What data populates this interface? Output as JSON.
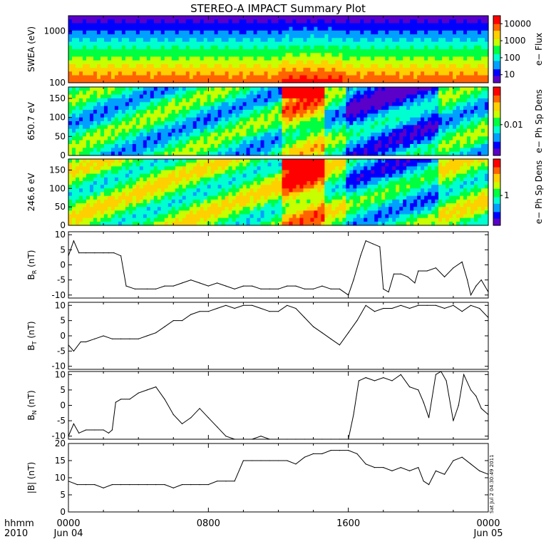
{
  "title": "STEREO-A IMPACT Summary Plot",
  "footer": {
    "time_label": "hhmm",
    "year": "2010",
    "ticks": [
      {
        "hhmm": "0000",
        "date": "Jun 04"
      },
      {
        "hhmm": "0800",
        "date": ""
      },
      {
        "hhmm": "1600",
        "date": ""
      },
      {
        "hhmm": "0000",
        "date": "Jun 05"
      }
    ],
    "stamp": "Sat Jul 2 04:30:49 2011"
  },
  "colors": {
    "colormap": [
      "#5a00c8",
      "#0000ff",
      "#00a0ff",
      "#00ffd0",
      "#00ff40",
      "#c8ff00",
      "#ffd000",
      "#ff6400",
      "#ff0000"
    ],
    "line": "#000000"
  },
  "chart_data": [
    {
      "type": "heatmap",
      "id": "swea",
      "ylabel": "SWEA (eV)",
      "yticks": [
        "100",
        "1000"
      ],
      "ylim": [
        100,
        2000
      ],
      "yscale": "log",
      "colorbar": {
        "label": "e− Flux",
        "ticks": [
          "10",
          "100",
          "1000",
          "10000"
        ],
        "scale": "log"
      },
      "description_of_values": "energy spectrogram, highest flux at low energies, enhanced near 12-15 hr"
    },
    {
      "type": "heatmap",
      "id": "pad650",
      "ylabel": "650.7 eV",
      "yticks": [
        "0",
        "50",
        "100",
        "150"
      ],
      "ylim": [
        0,
        180
      ],
      "colorbar": {
        "label": "e− Ph Sp Dens",
        "ticks": [
          "0.01"
        ],
        "scale": "log"
      }
    },
    {
      "type": "heatmap",
      "id": "pad246",
      "ylabel": "246.6 eV",
      "yticks": [
        "0",
        "50",
        "100",
        "150"
      ],
      "ylim": [
        0,
        180
      ],
      "colorbar": {
        "label": "e− Ph Sp Dens",
        "ticks": [
          "1"
        ],
        "scale": "log"
      }
    },
    {
      "type": "line",
      "id": "br",
      "ylabel": "B",
      "ylabel_sub": "R",
      "ylabel_unit": "(nT)",
      "yticks": [
        "-10",
        "-5",
        "0",
        "5",
        "10"
      ],
      "ylim": [
        -11,
        11
      ],
      "x": [
        0,
        0.3,
        0.6,
        1,
        1.5,
        2,
        2.3,
        2.6,
        3,
        3.3,
        3.8,
        4.5,
        5,
        5.5,
        6,
        6.5,
        7,
        7.5,
        8,
        8.5,
        9,
        9.5,
        10,
        10.5,
        11,
        11.5,
        12,
        12.5,
        13,
        13.5,
        14,
        14.5,
        15,
        15.5,
        16,
        16.3,
        16.7,
        17,
        17.4,
        17.8,
        18,
        18.3,
        18.6,
        19,
        19.4,
        19.8,
        20,
        20.5,
        21,
        21.5,
        22,
        22.5,
        22.8,
        23,
        23.3,
        23.6,
        24
      ],
      "y": [
        3,
        8,
        4,
        4,
        4,
        4,
        4,
        4,
        3,
        -7,
        -8,
        -8,
        -8,
        -7,
        -7,
        -6,
        -5,
        -6,
        -7,
        -6,
        -7,
        -8,
        -7,
        -7,
        -8,
        -8,
        -8,
        -7,
        -7,
        -8,
        -8,
        -7,
        -8,
        -8,
        -10,
        -5,
        3,
        8,
        7,
        6,
        -8,
        -9,
        -3,
        -3,
        -4,
        -6,
        -2,
        -2,
        -1,
        -4,
        -1,
        1,
        -5,
        -10,
        -7,
        -5,
        -9
      ]
    },
    {
      "type": "line",
      "id": "bt",
      "ylabel": "B",
      "ylabel_sub": "T",
      "ylabel_unit": "(nT)",
      "yticks": [
        "-10",
        "-5",
        "0",
        "5",
        "10"
      ],
      "ylim": [
        -11,
        11
      ],
      "x": [
        0,
        0.3,
        0.7,
        1,
        1.5,
        2,
        2.5,
        3,
        3.5,
        4,
        4.5,
        5,
        5.5,
        6,
        6.5,
        7,
        7.5,
        8,
        8.5,
        9,
        9.5,
        10,
        10.5,
        11,
        11.5,
        12,
        12.5,
        13,
        13.5,
        14,
        14.5,
        15,
        15.5,
        16,
        16.5,
        17,
        17.5,
        18,
        18.5,
        19,
        19.5,
        20,
        20.5,
        21,
        21.5,
        22,
        22.5,
        23,
        23.5,
        24
      ],
      "y": [
        -3,
        -5,
        -2,
        -2,
        -1,
        0,
        -1,
        -1,
        -1,
        -1,
        0,
        1,
        3,
        5,
        5,
        7,
        8,
        8,
        9,
        10,
        9,
        10,
        10,
        9,
        8,
        8,
        10,
        9,
        6,
        3,
        1,
        -1,
        -3,
        1,
        5,
        10,
        8,
        9,
        9,
        10,
        9,
        10,
        10,
        10,
        9,
        10,
        8,
        10,
        9,
        6
      ]
    },
    {
      "type": "line",
      "id": "bn",
      "ylabel": "B",
      "ylabel_sub": "N",
      "ylabel_unit": "(nT)",
      "yticks": [
        "-10",
        "-5",
        "0",
        "5",
        "10"
      ],
      "ylim": [
        -11,
        11
      ],
      "x": [
        0,
        0.3,
        0.6,
        1,
        1.5,
        2,
        2.3,
        2.5,
        2.7,
        3,
        3.5,
        4,
        4.5,
        5,
        5.5,
        6,
        6.5,
        7,
        7.5,
        8,
        8.5,
        9,
        9.5,
        10,
        10.5,
        11,
        11.5,
        12,
        12.5,
        13,
        13.5,
        14,
        14.5,
        15,
        15.5,
        16,
        16.3,
        16.6,
        17,
        17.5,
        18,
        18.5,
        19,
        19.5,
        20,
        20.3,
        20.6,
        21,
        21.3,
        21.6,
        22,
        22.3,
        22.6,
        23,
        23.3,
        23.6,
        24
      ],
      "y": [
        -10,
        -6,
        -9,
        -8,
        -8,
        -8,
        -9,
        -8,
        1,
        2,
        2,
        4,
        5,
        6,
        2,
        -3,
        -6,
        -4,
        -1,
        -4,
        -7,
        -10,
        -11,
        -11,
        -11,
        -10,
        -11,
        -11,
        -11,
        -11,
        -11,
        -11,
        -11,
        -11,
        -11,
        -11,
        -3,
        8,
        9,
        8,
        9,
        8,
        10,
        6,
        5,
        1,
        -4,
        10,
        11,
        8,
        -5,
        0,
        10,
        5,
        3,
        -1,
        -3
      ]
    },
    {
      "type": "line",
      "id": "bmag",
      "ylabel": "|B|",
      "ylabel_unit": "(nT)",
      "yticks": [
        "0",
        "5",
        "10",
        "15",
        "20"
      ],
      "ylim": [
        0,
        20
      ],
      "x": [
        0,
        0.5,
        1,
        1.5,
        2,
        2.5,
        3,
        3.5,
        4,
        4.5,
        5,
        5.5,
        6,
        6.5,
        7,
        7.5,
        8,
        8.5,
        9,
        9.5,
        10,
        10.5,
        11,
        11.5,
        12,
        12.5,
        13,
        13.5,
        14,
        14.5,
        15,
        15.5,
        16,
        16.5,
        17,
        17.5,
        18,
        18.5,
        19,
        19.5,
        20,
        20.3,
        20.6,
        21,
        21.5,
        22,
        22.5,
        23,
        23.5,
        24
      ],
      "y": [
        9,
        8,
        8,
        8,
        7,
        8,
        8,
        8,
        8,
        8,
        8,
        8,
        7,
        8,
        8,
        8,
        8,
        9,
        9,
        9,
        15,
        15,
        15,
        15,
        15,
        15,
        14,
        16,
        17,
        17,
        18,
        18,
        18,
        17,
        14,
        13,
        13,
        12,
        13,
        12,
        13,
        9,
        8,
        12,
        11,
        15,
        16,
        14,
        12,
        11
      ]
    }
  ]
}
